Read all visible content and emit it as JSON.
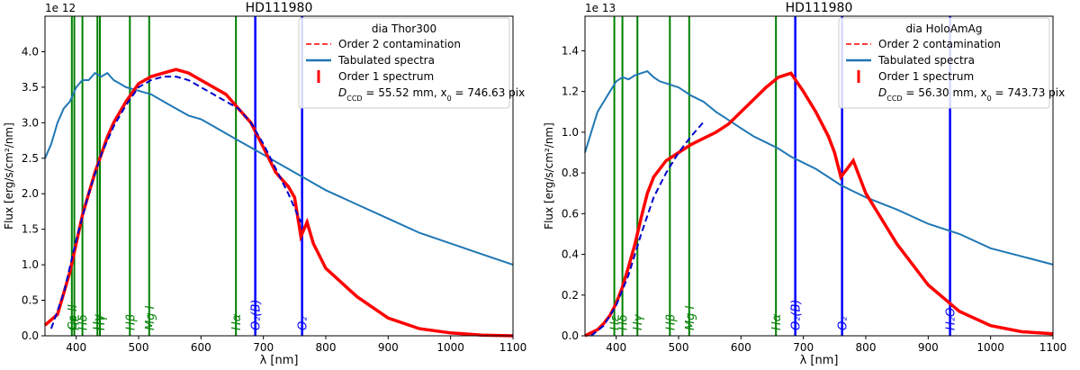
{
  "chart_data": [
    {
      "type": "line",
      "title": "HD111980",
      "xlabel": "λ [nm]",
      "ylabel": "Flux [erg/s/cm²/nm]",
      "offset_text": "1e 12",
      "xlim": [
        350,
        1100
      ],
      "ylim": [
        0,
        4.5e-12
      ],
      "x_ticks": [
        400,
        500,
        600,
        700,
        800,
        900,
        1000,
        1100
      ],
      "y_ticks": [
        0.0,
        0.5,
        1.0,
        1.5,
        2.0,
        2.5,
        3.0,
        3.5,
        4.0
      ],
      "y_tick_labels": [
        "0.0",
        "0.5",
        "1.0",
        "1.5",
        "2.0",
        "2.5",
        "3.0",
        "3.5",
        "4.0"
      ],
      "grid": false,
      "legend_position": "top-right",
      "legend": {
        "title": "dia Thor300",
        "entries": [
          {
            "label": "Order 2 contamination",
            "color": "#ff0000",
            "style": "dashed"
          },
          {
            "label": "Tabulated spectra",
            "color": "#1f77b4",
            "style": "solid"
          },
          {
            "label": "Order 1 spectrum",
            "color": "#ff0000",
            "style": "errorbar"
          }
        ],
        "note_prefix": "D",
        "note_sub": "CCD",
        "note_rest": " = 55.52 mm, x",
        "note_sub2": "0",
        "note_end": " = 746.63 pix"
      },
      "lines": [
        {
          "label": "Hε",
          "x": 397,
          "color": "#008000"
        },
        {
          "label": "Ca II",
          "x": 393,
          "color": "#008000"
        },
        {
          "label": "Hδ",
          "x": 410,
          "color": "#008000"
        },
        {
          "label": "Hγ",
          "x": 434,
          "color": "#008000"
        },
        {
          "label": "Hγ",
          "x": 438,
          "color": "#008000"
        },
        {
          "label": "Hβ",
          "x": 486,
          "color": "#008000"
        },
        {
          "label": "Mg I",
          "x": 517,
          "color": "#008000"
        },
        {
          "label": "Hα",
          "x": 656,
          "color": "#008000"
        },
        {
          "label": "O₂(B)",
          "x": 687,
          "color": "#0000ff"
        },
        {
          "label": "O₂",
          "x": 762,
          "color": "#0000ff"
        }
      ],
      "series": [
        {
          "name": "Tabulated spectra",
          "color": "#1f77b4",
          "x": [
            350,
            360,
            370,
            380,
            390,
            400,
            410,
            420,
            430,
            440,
            450,
            460,
            470,
            480,
            500,
            520,
            540,
            560,
            580,
            600,
            620,
            640,
            660,
            680,
            700,
            720,
            740,
            760,
            780,
            800,
            850,
            900,
            950,
            1000,
            1050,
            1100
          ],
          "y": [
            2.5,
            2.7,
            3.0,
            3.2,
            3.3,
            3.5,
            3.6,
            3.6,
            3.7,
            3.65,
            3.7,
            3.6,
            3.55,
            3.5,
            3.45,
            3.4,
            3.3,
            3.2,
            3.1,
            3.05,
            2.95,
            2.85,
            2.75,
            2.65,
            2.55,
            2.45,
            2.35,
            2.25,
            2.15,
            2.05,
            1.85,
            1.65,
            1.45,
            1.3,
            1.15,
            1.0
          ]
        },
        {
          "name": "Order 1 spectrum",
          "color": "#ff0000",
          "x": [
            350,
            370,
            380,
            390,
            400,
            410,
            420,
            430,
            440,
            450,
            460,
            480,
            500,
            520,
            540,
            560,
            580,
            600,
            620,
            640,
            660,
            680,
            700,
            720,
            740,
            750,
            760,
            770,
            780,
            800,
            850,
            900,
            950,
            1000,
            1050,
            1100
          ],
          "y": [
            0.15,
            0.3,
            0.6,
            0.9,
            1.3,
            1.7,
            2.0,
            2.3,
            2.55,
            2.8,
            3.0,
            3.3,
            3.55,
            3.65,
            3.7,
            3.75,
            3.7,
            3.6,
            3.5,
            3.4,
            3.2,
            3.0,
            2.65,
            2.3,
            2.1,
            1.95,
            1.4,
            1.6,
            1.3,
            0.95,
            0.55,
            0.25,
            0.1,
            0.04,
            0.01,
            0.0
          ]
        },
        {
          "name": "Order 2 contamination",
          "color": "#0000cc",
          "x": [
            360,
            380,
            400,
            420,
            440,
            460,
            480,
            500,
            520,
            540,
            560,
            580,
            600,
            620,
            640,
            660,
            680,
            700,
            720,
            740,
            760
          ],
          "y": [
            0.1,
            0.6,
            1.35,
            2.0,
            2.55,
            2.95,
            3.25,
            3.5,
            3.6,
            3.65,
            3.65,
            3.6,
            3.5,
            3.4,
            3.3,
            3.2,
            3.0,
            2.7,
            2.35,
            2.0,
            1.6
          ]
        }
      ]
    },
    {
      "type": "line",
      "title": "HD111980",
      "xlabel": "λ [nm]",
      "ylabel": "Flux [erg/s/cm²/nm]",
      "offset_text": "1e 13",
      "xlim": [
        350,
        1100
      ],
      "ylim": [
        0,
        1.57e-13
      ],
      "x_ticks": [
        400,
        500,
        600,
        700,
        800,
        900,
        1000,
        1100
      ],
      "y_ticks": [
        0.0,
        0.2,
        0.4,
        0.6,
        0.8,
        1.0,
        1.2,
        1.4
      ],
      "y_tick_labels": [
        "0.0",
        "0.2",
        "0.4",
        "0.6",
        "0.8",
        "1.0",
        "1.2",
        "1.4"
      ],
      "grid": false,
      "legend_position": "top-right",
      "legend": {
        "title": "dia HoloAmAg",
        "entries": [
          {
            "label": "Order 2 contamination",
            "color": "#ff0000",
            "style": "dashed"
          },
          {
            "label": "Tabulated spectra",
            "color": "#1f77b4",
            "style": "solid"
          },
          {
            "label": "Order 1 spectrum",
            "color": "#ff0000",
            "style": "errorbar"
          }
        ],
        "note_prefix": "D",
        "note_sub": "CCD",
        "note_rest": " = 56.30 mm, x",
        "note_sub2": "0",
        "note_end": " = 743.73 pix"
      },
      "lines": [
        {
          "label": "Hε",
          "x": 397,
          "color": "#008000"
        },
        {
          "label": "Hδ",
          "x": 410,
          "color": "#008000"
        },
        {
          "label": "Hγ",
          "x": 434,
          "color": "#008000"
        },
        {
          "label": "Hβ",
          "x": 486,
          "color": "#008000"
        },
        {
          "label": "Mg I",
          "x": 517,
          "color": "#008000"
        },
        {
          "label": "Hα",
          "x": 656,
          "color": "#008000"
        },
        {
          "label": "O₂(B)",
          "x": 687,
          "color": "#0000ff"
        },
        {
          "label": "O₂",
          "x": 762,
          "color": "#0000ff"
        },
        {
          "label": "H₂O",
          "x": 935,
          "color": "#0000ff"
        }
      ],
      "series": [
        {
          "name": "Tabulated spectra",
          "color": "#1f77b4",
          "x": [
            350,
            360,
            370,
            380,
            390,
            400,
            410,
            420,
            430,
            440,
            450,
            460,
            470,
            480,
            500,
            520,
            540,
            560,
            580,
            600,
            620,
            640,
            660,
            680,
            700,
            720,
            740,
            760,
            780,
            800,
            850,
            900,
            950,
            1000,
            1050,
            1100
          ],
          "y": [
            0.9,
            1.0,
            1.1,
            1.15,
            1.2,
            1.25,
            1.27,
            1.26,
            1.28,
            1.29,
            1.3,
            1.27,
            1.25,
            1.24,
            1.22,
            1.18,
            1.15,
            1.1,
            1.06,
            1.02,
            0.98,
            0.95,
            0.92,
            0.88,
            0.85,
            0.82,
            0.78,
            0.74,
            0.71,
            0.68,
            0.62,
            0.55,
            0.5,
            0.43,
            0.39,
            0.35
          ]
        },
        {
          "name": "Order 1 spectrum",
          "color": "#ff0000",
          "x": [
            350,
            370,
            380,
            390,
            400,
            410,
            420,
            430,
            440,
            450,
            460,
            480,
            500,
            520,
            540,
            560,
            580,
            600,
            620,
            640,
            660,
            680,
            700,
            720,
            740,
            750,
            760,
            770,
            780,
            800,
            850,
            900,
            950,
            1000,
            1050,
            1100
          ],
          "y": [
            0.0,
            0.03,
            0.06,
            0.1,
            0.16,
            0.24,
            0.34,
            0.45,
            0.58,
            0.7,
            0.78,
            0.86,
            0.9,
            0.94,
            0.97,
            1.0,
            1.04,
            1.1,
            1.16,
            1.22,
            1.27,
            1.29,
            1.2,
            1.1,
            0.98,
            0.9,
            0.78,
            0.82,
            0.86,
            0.7,
            0.45,
            0.25,
            0.12,
            0.05,
            0.02,
            0.01
          ]
        },
        {
          "name": "Order 2 contamination",
          "color": "#0000cc",
          "x": [
            360,
            380,
            400,
            420,
            440,
            460,
            480,
            500,
            520,
            540
          ],
          "y": [
            0.0,
            0.05,
            0.15,
            0.3,
            0.5,
            0.68,
            0.8,
            0.9,
            0.98,
            1.05
          ]
        }
      ]
    }
  ]
}
